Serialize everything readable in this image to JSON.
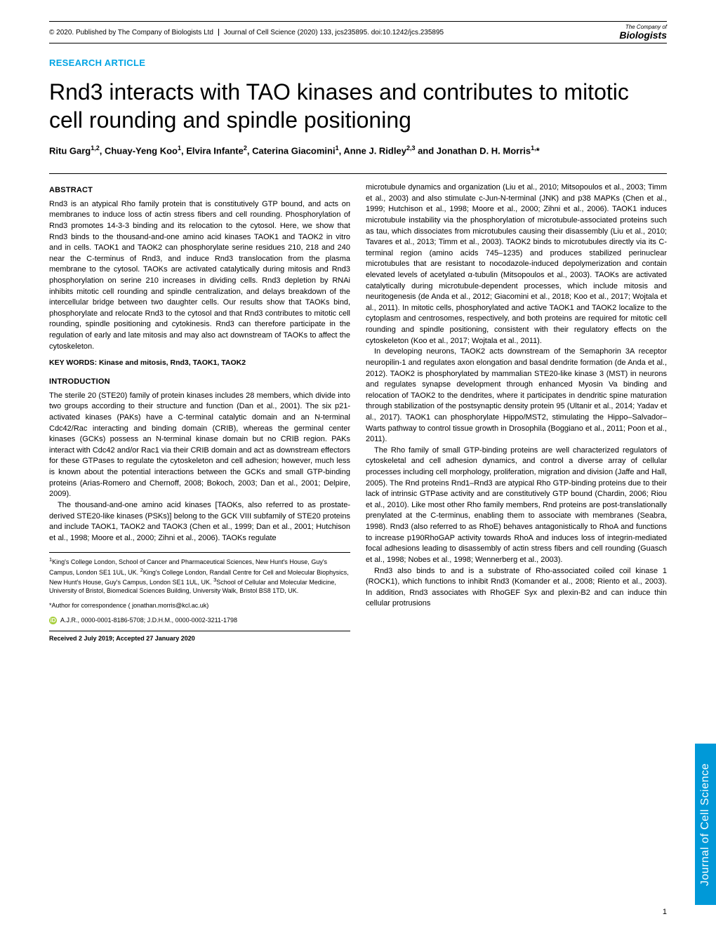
{
  "meta": {
    "copyright": "© 2020. Published by The Company of Biologists Ltd",
    "journal_ref": "Journal of Cell Science (2020) 133, jcs235895. doi:10.1242/jcs.235895",
    "publisher_top": "The Company of",
    "publisher_bottom": "Biologists",
    "side_tab": "Journal of Cell Science",
    "page_num": "1"
  },
  "article": {
    "type": "RESEARCH ARTICLE",
    "title": "Rnd3 interacts with TAO kinases and contributes to mitotic cell rounding and spindle positioning",
    "authors_html": "Ritu Garg<sup>1,2</sup>, Chuay-Yeng Koo<sup>1</sup>, Elvira Infante<sup>2</sup>, Caterina Giacomini<sup>1</sup>, Anne J. Ridley<sup>2,3</sup> and Jonathan D. H. Morris<sup>1,</sup>*"
  },
  "abstract": {
    "head": "ABSTRACT",
    "body": "Rnd3 is an atypical Rho family protein that is constitutively GTP bound, and acts on membranes to induce loss of actin stress fibers and cell rounding. Phosphorylation of Rnd3 promotes 14-3-3 binding and its relocation to the cytosol. Here, we show that Rnd3 binds to the thousand-and-one amino acid kinases TAOK1 and TAOK2 in vitro and in cells. TAOK1 and TAOK2 can phosphorylate serine residues 210, 218 and 240 near the C-terminus of Rnd3, and induce Rnd3 translocation from the plasma membrane to the cytosol. TAOKs are activated catalytically during mitosis and Rnd3 phosphorylation on serine 210 increases in dividing cells. Rnd3 depletion by RNAi inhibits mitotic cell rounding and spindle centralization, and delays breakdown of the intercellular bridge between two daughter cells. Our results show that TAOKs bind, phosphorylate and relocate Rnd3 to the cytosol and that Rnd3 contributes to mitotic cell rounding, spindle positioning and cytokinesis. Rnd3 can therefore participate in the regulation of early and late mitosis and may also act downstream of TAOKs to affect the cytoskeleton.",
    "keywords": "KEY WORDS: Kinase and mitosis, Rnd3, TAOK1, TAOK2"
  },
  "intro": {
    "head": "INTRODUCTION",
    "p1": "The sterile 20 (STE20) family of protein kinases includes 28 members, which divide into two groups according to their structure and function (Dan et al., 2001). The six p21-activated kinases (PAKs) have a C-terminal catalytic domain and an N-terminal Cdc42/Rac interacting and binding domain (CRIB), whereas the germinal center kinases (GCKs) possess an N-terminal kinase domain but no CRIB region. PAKs interact with Cdc42 and/or Rac1 via their CRIB domain and act as downstream effectors for these GTPases to regulate the cytoskeleton and cell adhesion; however, much less is known about the potential interactions between the GCKs and small GTP-binding proteins (Arias-Romero and Chernoff, 2008; Bokoch, 2003; Dan et al., 2001; Delpire, 2009).",
    "p2": "The thousand-and-one amino acid kinases [TAOKs, also referred to as prostate-derived STE20-like kinases (PSKs)] belong to the GCK VIII subfamily of STE20 proteins and include TAOK1, TAOK2 and TAOK3 (Chen et al., 1999; Dan et al., 2001; Hutchison et al., 1998; Moore et al., 2000; Zihni et al., 2006). TAOKs regulate"
  },
  "col2": {
    "p1": "microtubule dynamics and organization (Liu et al., 2010; Mitsopoulos et al., 2003; Timm et al., 2003) and also stimulate c-Jun-N-terminal (JNK) and p38 MAPKs (Chen et al., 1999; Hutchison et al., 1998; Moore et al., 2000; Zihni et al., 2006). TAOK1 induces microtubule instability via the phosphorylation of microtubule-associated proteins such as tau, which dissociates from microtubules causing their disassembly (Liu et al., 2010; Tavares et al., 2013; Timm et al., 2003). TAOK2 binds to microtubules directly via its C-terminal region (amino acids 745–1235) and produces stabilized perinuclear microtubules that are resistant to nocodazole-induced depolymerization and contain elevated levels of acetylated α-tubulin (Mitsopoulos et al., 2003). TAOKs are activated catalytically during microtubule-dependent processes, which include mitosis and neuritogenesis (de Anda et al., 2012; Giacomini et al., 2018; Koo et al., 2017; Wojtala et al., 2011). In mitotic cells, phosphorylated and active TAOK1 and TAOK2 localize to the cytoplasm and centrosomes, respectively, and both proteins are required for mitotic cell rounding and spindle positioning, consistent with their regulatory effects on the cytoskeleton (Koo et al., 2017; Wojtala et al., 2011).",
    "p2": "In developing neurons, TAOK2 acts downstream of the Semaphorin 3A receptor neuropilin-1 and regulates axon elongation and basal dendrite formation (de Anda et al., 2012). TAOK2 is phosphorylated by mammalian STE20-like kinase 3 (MST) in neurons and regulates synapse development through enhanced Myosin Va binding and relocation of TAOK2 to the dendrites, where it participates in dendritic spine maturation through stabilization of the postsynaptic density protein 95 (Ultanir et al., 2014; Yadav et al., 2017). TAOK1 can phosphorylate Hippo/MST2, stimulating the Hippo–Salvador–Warts pathway to control tissue growth in Drosophila (Boggiano et al., 2011; Poon et al., 2011).",
    "p3": "The Rho family of small GTP-binding proteins are well characterized regulators of cytoskeletal and cell adhesion dynamics, and control a diverse array of cellular processes including cell morphology, proliferation, migration and division (Jaffe and Hall, 2005). The Rnd proteins Rnd1–Rnd3 are atypical Rho GTP-binding proteins due to their lack of intrinsic GTPase activity and are constitutively GTP bound (Chardin, 2006; Riou et al., 2010). Like most other Rho family members, Rnd proteins are post-translationally prenylated at the C-terminus, enabling them to associate with membranes (Seabra, 1998). Rnd3 (also referred to as RhoE) behaves antagonistically to RhoA and functions to increase p190RhoGAP activity towards RhoA and induces loss of integrin-mediated focal adhesions leading to disassembly of actin stress fibers and cell rounding (Guasch et al., 1998; Nobes et al., 1998; Wennerberg et al., 2003).",
    "p4": "Rnd3 also binds to and is a substrate of Rho-associated coiled coil kinase 1 (ROCK1), which functions to inhibit Rnd3 (Komander et al., 2008; Riento et al., 2003). In addition, Rnd3 associates with RhoGEF Syx and plexin-B2 and can induce thin cellular protrusions"
  },
  "affils": {
    "text_html": "<sup>1</sup>King's College London, School of Cancer and Pharmaceutical Sciences, New Hunt's House, Guy's Campus, London SE1 1UL, UK. <sup>2</sup>King's College London, Randall Centre for Cell and Molecular Biophysics, New Hunt's House, Guy's Campus, London SE1 1UL, UK. <sup>3</sup>School of Cellular and Molecular Medicine, University of Bristol, Biomedical Sciences Building, University Walk, Bristol BS8 1TD, UK.",
    "corr": "*Author for correspondence ( jonathan.morris@kcl.ac.uk)",
    "orcid": "A.J.R., 0000-0001-8186-5708; J.D.H.M., 0000-0002-3211-1798",
    "dates": "Received 2 July 2019; Accepted 27 January 2020"
  },
  "colors": {
    "accent": "#00a4e4",
    "sidebar": "#0099d8",
    "orcid": "#a6ce39"
  }
}
